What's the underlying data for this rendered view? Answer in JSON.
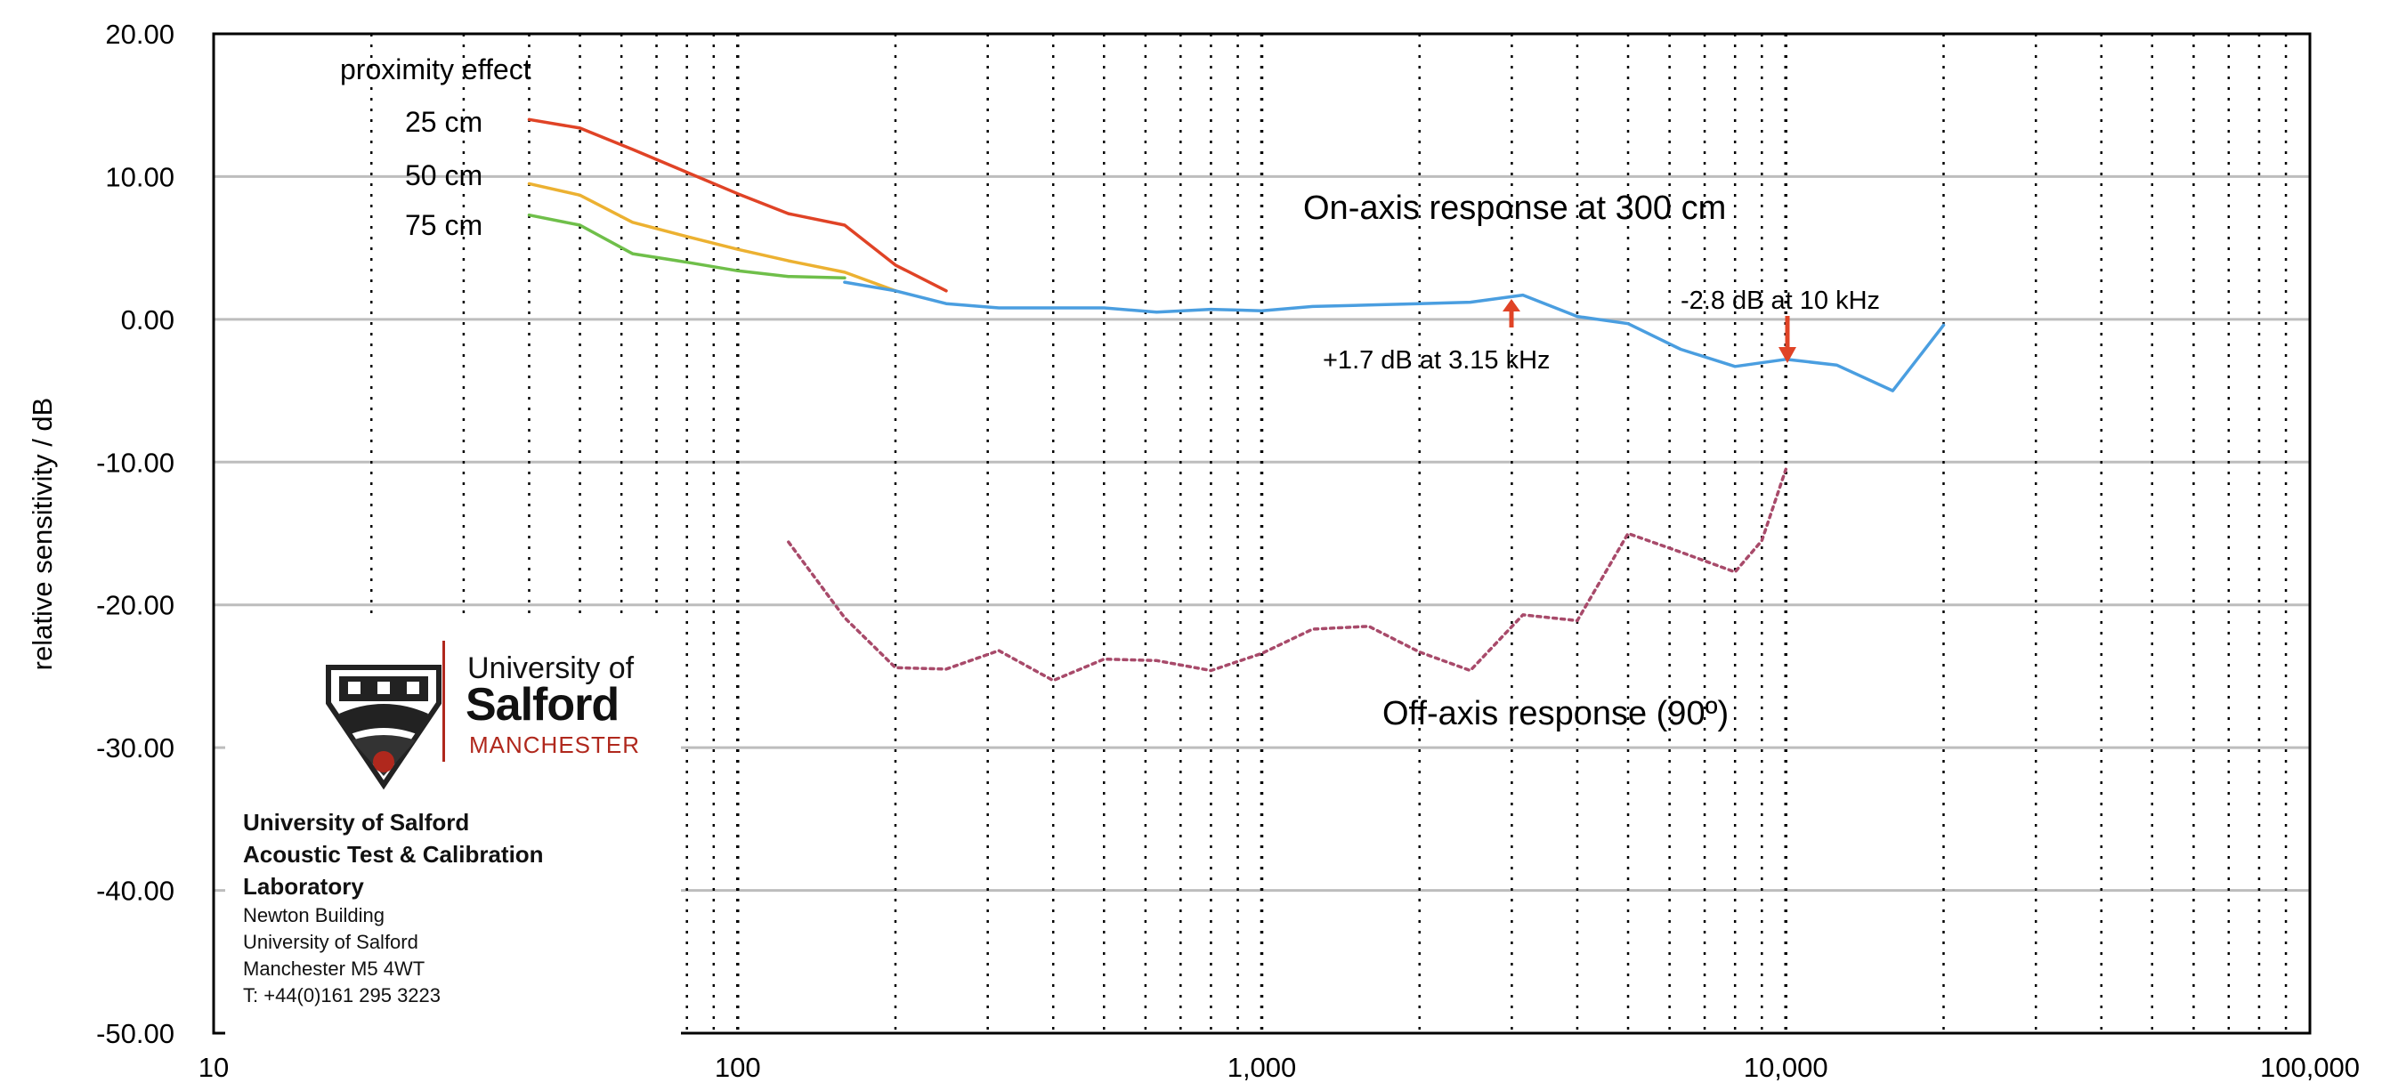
{
  "chart_data": {
    "type": "line",
    "x_scale": "log",
    "xlim": [
      10,
      100000
    ],
    "ylim": [
      -50,
      20
    ],
    "y_ticks": [
      "20.00",
      "10.00",
      "0.00",
      "-10.00",
      "-20.00",
      "-30.00",
      "-40.00",
      "-50.00"
    ],
    "x_ticks": [
      "10",
      "100",
      "1,000",
      "10,000",
      "100,000"
    ],
    "ylabel": "relative sensitivity / dB",
    "xlabel": "",
    "title": "",
    "grid": "horizontal major lines; dotted vertical lines at log decades",
    "legend": "none",
    "series": [
      {
        "color": "#e04326",
        "style": "solid",
        "x": [
          40,
          50,
          63,
          80,
          100,
          125,
          160,
          200,
          250
        ],
        "y": [
          14.0,
          13.4,
          11.9,
          10.3,
          8.8,
          7.4,
          6.6,
          3.8,
          2.0
        ]
      },
      {
        "color": "#ecb131",
        "style": "solid",
        "x": [
          40,
          50,
          63,
          80,
          100,
          125,
          160,
          200
        ],
        "y": [
          9.5,
          8.7,
          6.8,
          5.8,
          4.9,
          4.1,
          3.3,
          2.0
        ]
      },
      {
        "color": "#6fbf4a",
        "style": "solid",
        "x": [
          40,
          50,
          63,
          80,
          100,
          125,
          160
        ],
        "y": [
          7.3,
          6.6,
          4.6,
          4.0,
          3.4,
          3.0,
          2.9
        ]
      },
      {
        "color": "#4a9ee0",
        "style": "solid",
        "x": [
          160,
          200,
          250,
          315,
          400,
          500,
          630,
          800,
          1000,
          1250,
          1600,
          2000,
          2500,
          3150,
          4000,
          5000,
          6300,
          8000,
          10000,
          12500,
          16000,
          20000
        ],
        "y": [
          2.6,
          2.0,
          1.1,
          0.8,
          0.8,
          0.8,
          0.5,
          0.7,
          0.6,
          0.9,
          1.0,
          1.1,
          1.2,
          1.7,
          0.2,
          -0.3,
          -2.1,
          -3.3,
          -2.8,
          -3.2,
          -5.0,
          -0.4
        ]
      },
      {
        "color": "#a84a6a",
        "style": "dotted",
        "x": [
          125,
          160,
          200,
          250,
          315,
          400,
          500,
          630,
          800,
          1000,
          1250,
          1600,
          2000,
          2500,
          3150,
          4000,
          5000,
          6300,
          8000,
          9000,
          10000
        ],
        "y": [
          -15.6,
          -20.9,
          -24.4,
          -24.5,
          -23.2,
          -25.3,
          -23.8,
          -23.9,
          -24.6,
          -23.4,
          -21.7,
          -21.5,
          -23.3,
          -24.6,
          -20.7,
          -21.1,
          -15.0,
          -16.3,
          -17.7,
          -15.5,
          -10.5
        ]
      }
    ],
    "annotations": {
      "proximity_title": "proximity effect",
      "prox_25": "25 cm",
      "prox_50": "50 cm",
      "prox_75": "75 cm",
      "on_axis": "On-axis response at 300 cm",
      "off_axis": "Off-axis response (90º)",
      "peak_note": "+1.7 dB at 3.15 kHz",
      "dip_note": "-2.8 dB at 10 kHz",
      "arrow_color": "#e04326"
    }
  },
  "logo": {
    "brand_line1": "University of",
    "brand_line2": "Salford",
    "brand_line3": "MANCHESTER",
    "brand_color": "#b0281d",
    "lab_title": [
      "University of Salford",
      "Acoustic Test & Calibration",
      "Laboratory"
    ],
    "address": [
      "Newton Building",
      "University of Salford",
      "Manchester M5 4WT",
      "T: +44(0)161 295 3223"
    ]
  }
}
